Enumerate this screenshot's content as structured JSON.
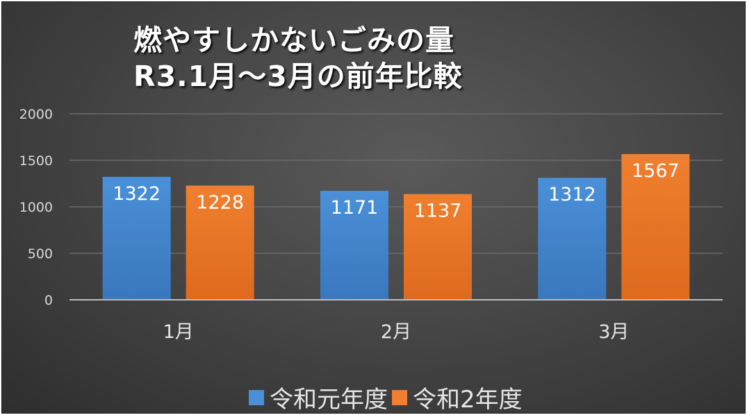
{
  "chart_data": {
    "type": "bar",
    "title": "燃やすしかないごみの量",
    "subtitle": "R3.1月～3月の前年比較",
    "categories": [
      "1月",
      "2月",
      "3月"
    ],
    "series": [
      {
        "name": "令和元年度",
        "values": [
          1322,
          1171,
          1312
        ],
        "color": "#4a90d9"
      },
      {
        "name": "令和2年度",
        "values": [
          1228,
          1137,
          1567
        ],
        "color": "#f07f2f"
      }
    ],
    "yticks": [
      "0",
      "500",
      "1000",
      "1500",
      "2000"
    ],
    "ylim": [
      0,
      2000
    ],
    "grid": true,
    "legend": "bottom",
    "data_labels": true
  }
}
